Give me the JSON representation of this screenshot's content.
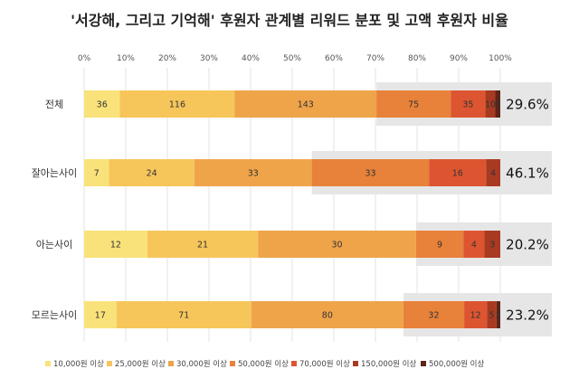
{
  "chart_data": {
    "type": "bar",
    "orientation": "horizontal",
    "stacked": "percent",
    "title": "'서강해, 그리고 기억해' 후원자 관계별 리워드 분포 및 고액 후원자 비율",
    "x_ticks": [
      "0%",
      "10%",
      "20%",
      "30%",
      "40%",
      "50%",
      "60%",
      "70%",
      "80%",
      "90%",
      "100%"
    ],
    "xlim": [
      0,
      100
    ],
    "categories": [
      "전체",
      "잘아는사이",
      "아는사이",
      "모르는사이"
    ],
    "series": [
      {
        "name": "10,000원 이상",
        "color": "#FAE27A",
        "values": [
          36,
          7,
          12,
          17
        ]
      },
      {
        "name": "25,000원 이상",
        "color": "#F6C65B",
        "values": [
          116,
          24,
          21,
          71
        ]
      },
      {
        "name": "30,000원 이상",
        "color": "#EFA44A",
        "values": [
          143,
          33,
          30,
          80
        ]
      },
      {
        "name": "50,000원 이상",
        "color": "#E8813A",
        "values": [
          75,
          33,
          9,
          32
        ]
      },
      {
        "name": "70,000원 이상",
        "color": "#DD5530",
        "values": [
          35,
          16,
          4,
          12
        ]
      },
      {
        "name": "150,000원 이상",
        "color": "#A83A22",
        "values": [
          10,
          4,
          3,
          5
        ]
      },
      {
        "name": "500,000원 이상",
        "color": "#5E2418",
        "values": [
          5,
          0,
          0,
          2
        ]
      }
    ],
    "segment_labels": [
      [
        "36",
        "116",
        "143",
        "75",
        "35",
        "10",
        "5"
      ],
      [
        "7",
        "24",
        "33",
        "33",
        "16",
        "4",
        ""
      ],
      [
        "12",
        "21",
        "30",
        "9",
        "4",
        "3",
        ""
      ],
      [
        "17",
        "71",
        "80",
        "32",
        "12",
        "5",
        "2"
      ]
    ],
    "high_donor_ratio": [
      "29.6%",
      "46.1%",
      "20.2%",
      "23.2%"
    ],
    "highlight_color": "#E6E6E6",
    "grid": true,
    "legend_position": "bottom"
  }
}
